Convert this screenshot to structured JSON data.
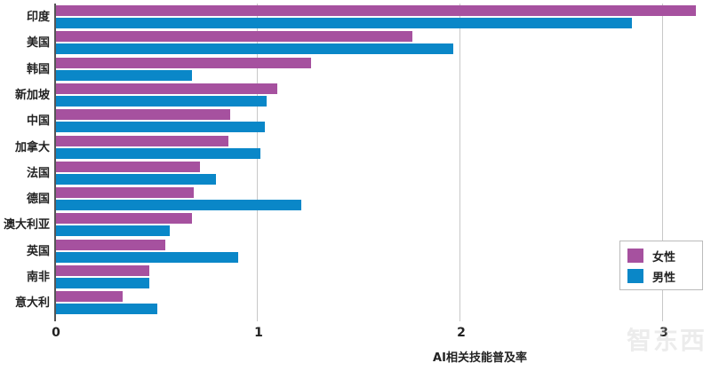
{
  "chart_data": {
    "type": "bar",
    "orientation": "horizontal",
    "title": "",
    "xlabel": "AI相关技能普及率",
    "ylabel": "",
    "xlim": [
      0,
      3.2
    ],
    "x_ticks": [
      0,
      1,
      2,
      3
    ],
    "grid": true,
    "legend_position": "lower right",
    "categories": [
      "印度",
      "美国",
      "韩国",
      "新加坡",
      "中国",
      "加拿大",
      "法国",
      "德国",
      "澳大利亚",
      "英国",
      "南非",
      "意大利"
    ],
    "series": [
      {
        "name": "女性",
        "color": "#a6519f",
        "values": [
          3.16,
          1.76,
          1.26,
          1.09,
          0.86,
          0.85,
          0.71,
          0.68,
          0.67,
          0.54,
          0.46,
          0.33
        ]
      },
      {
        "name": "男性",
        "color": "#0a87c8",
        "values": [
          2.84,
          1.96,
          0.67,
          1.04,
          1.03,
          1.01,
          0.79,
          1.21,
          0.56,
          0.9,
          0.46,
          0.5
        ]
      }
    ]
  },
  "legend": {
    "items": [
      {
        "label": "女性",
        "color": "#a6519f"
      },
      {
        "label": "男性",
        "color": "#0a87c8"
      }
    ]
  },
  "axis": {
    "tick_labels": [
      "0",
      "1",
      "2",
      "3"
    ],
    "xlabel": "AI相关技能普及率"
  },
  "watermark": "智东西"
}
